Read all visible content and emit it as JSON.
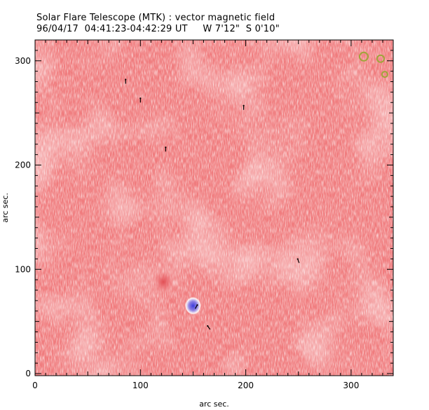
{
  "header": {
    "title": "Solar Flare Telescope (MTK) : vector magnetic field",
    "subtitle": "96/04/17  04:41:23-04:42:29 UT     W 7'12\"  S 0'10\""
  },
  "chart_data": {
    "type": "heatmap",
    "title": "Solar Flare Telescope (MTK) : vector magnetic field",
    "subtitle": "96/04/17  04:41:23-04:42:29 UT     W 7'12\"  S 0'10\"",
    "xlabel": "arc sec.",
    "ylabel": "arc sec.",
    "xlim": [
      0,
      340
    ],
    "ylim": [
      -2,
      320
    ],
    "xticks": [
      0,
      100,
      200,
      300
    ],
    "yticks": [
      0,
      100,
      200,
      300
    ],
    "grid": false,
    "colors": {
      "positive_field": "#f07c7e",
      "negative_field": "#6a6aee",
      "weak_field": "#ffffff",
      "vectors": "#000000",
      "markers": "#9fa53a"
    },
    "regions": [
      {
        "polarity": "positive",
        "x": 122,
        "y": 88,
        "size": 9
      },
      {
        "polarity": "negative",
        "x": 150,
        "y": 65,
        "size": 7
      }
    ],
    "vectors": [
      {
        "x": 86,
        "y": 280,
        "angle": 90
      },
      {
        "x": 100,
        "y": 262,
        "angle": 90
      },
      {
        "x": 124,
        "y": 215,
        "angle": 90
      },
      {
        "x": 198,
        "y": 255,
        "angle": 90
      },
      {
        "x": 250,
        "y": 108,
        "angle": 110
      },
      {
        "x": 165,
        "y": 44,
        "angle": 125
      },
      {
        "x": 153,
        "y": 64,
        "angle": 60
      }
    ],
    "markers": [
      {
        "shape": "circle",
        "x": 312,
        "y": 304
      },
      {
        "shape": "circle",
        "x": 328,
        "y": 302
      },
      {
        "shape": "circle",
        "x": 332,
        "y": 287
      }
    ]
  }
}
